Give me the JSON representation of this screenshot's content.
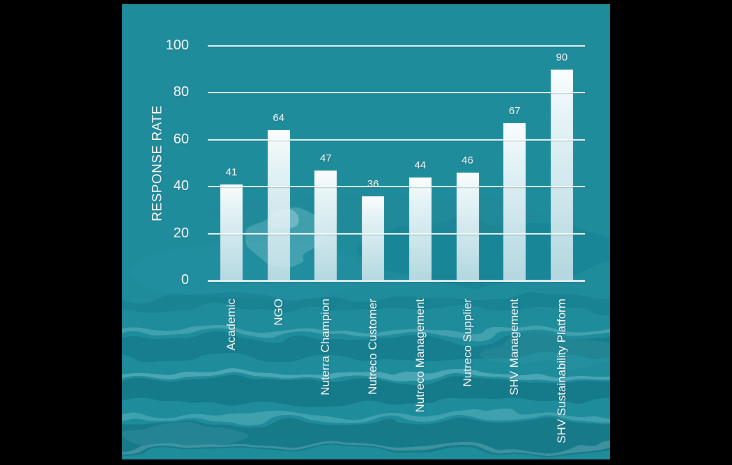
{
  "chart_data": {
    "type": "bar",
    "title": "",
    "xlabel": "",
    "ylabel": "RESPONSE RATE",
    "ylim": [
      0,
      100
    ],
    "yticks": [
      0,
      20,
      40,
      60,
      80,
      100
    ],
    "categories": [
      "Academic",
      "NGO",
      "Nuterra Champion",
      "Nutreco Customer",
      "Nutreco Management",
      "Nutreco Supplier",
      "SHV Management",
      "SHV Sustainability Platform"
    ],
    "values": [
      41,
      64,
      47,
      36,
      44,
      46,
      67,
      90
    ],
    "grid": "horizontal gridlines drawn over bars",
    "legend_position": "none",
    "background_description": "teal ocean water photograph, letterboxed with black side bars",
    "colors": {
      "bar_top": "#ffffff",
      "bar_bottom": "#cde5ec",
      "gridline": "#f2f8f9",
      "text": "#ffffff",
      "water_base": "#1f8c9c",
      "water_dark": "#115d6d",
      "water_light": "#8ed2da",
      "letterbox": "#000000"
    }
  }
}
